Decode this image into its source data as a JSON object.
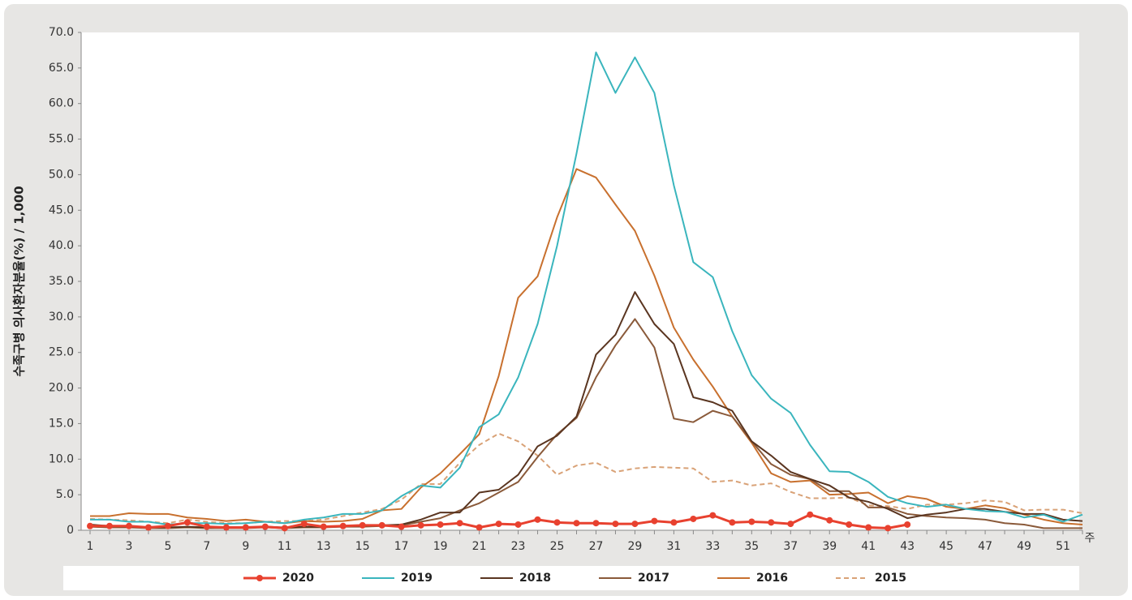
{
  "chart_data": {
    "type": "line",
    "y_label": "수족구병 의사환자분율(%) / 1,000",
    "x_label": "주",
    "categories": [
      1,
      null,
      3,
      null,
      5,
      null,
      7,
      null,
      9,
      null,
      11,
      null,
      13,
      null,
      15,
      null,
      17,
      null,
      19,
      null,
      21,
      null,
      23,
      null,
      25,
      null,
      27,
      null,
      29,
      null,
      31,
      null,
      33,
      null,
      35,
      null,
      37,
      null,
      39,
      null,
      41,
      null,
      43,
      null,
      45,
      null,
      47,
      null,
      49,
      null,
      51,
      null
    ],
    "ylim": [
      0,
      70
    ],
    "yticks": [
      0,
      {
        "value": 5,
        "label": "5.0"
      },
      {
        "value": 10,
        "label": "10.0"
      },
      {
        "value": 15,
        "label": "15.0"
      },
      {
        "value": 20,
        "label": "20.0"
      },
      {
        "value": 25,
        "label": "25.0"
      },
      {
        "value": 30,
        "label": "30.0"
      },
      {
        "value": 35,
        "label": "35.0"
      },
      {
        "value": 40,
        "label": "40.0"
      },
      {
        "value": 45,
        "label": "45.0"
      },
      {
        "value": 50,
        "label": "50.0"
      },
      {
        "value": 55,
        "label": "55.0"
      },
      {
        "value": 60,
        "label": "60.0"
      },
      {
        "value": 65,
        "label": "65.0"
      },
      {
        "value": 70,
        "label": "70.0"
      }
    ],
    "grid": false,
    "legend": "bottom",
    "series": [
      {
        "name": "2020",
        "color": "#e8412f",
        "style": "markers",
        "values": [
          0.6,
          0.6,
          0.6,
          0.4,
          0.6,
          1.1,
          0.5,
          0.4,
          0.4,
          0.5,
          0.3,
          0.9,
          0.5,
          0.6,
          0.7,
          0.7,
          0.5,
          0.7,
          0.8,
          1.0,
          0.4,
          0.9,
          0.8,
          1.5,
          1.1,
          1.0,
          1.0,
          0.9,
          0.9,
          1.3,
          1.1,
          1.6,
          2.1,
          1.1,
          1.2,
          1.1,
          0.9,
          2.2,
          1.4,
          0.8,
          0.4,
          0.3,
          0.8,
          null,
          null,
          null,
          null,
          null,
          null,
          null,
          null,
          null
        ]
      },
      {
        "name": "2019",
        "color": "#3ab5bd",
        "style": "solid",
        "values": [
          1.5,
          1.5,
          1.2,
          1.2,
          0.8,
          1.0,
          1.0,
          0.9,
          1.0,
          1.2,
          1.0,
          1.5,
          1.8,
          2.3,
          2.3,
          2.8,
          4.8,
          6.3,
          6.0,
          8.8,
          14.5,
          16.3,
          21.5,
          29,
          40,
          53,
          67.2,
          61.5,
          66.5,
          61.5,
          48.5,
          37.7,
          35.6,
          28,
          21.8,
          18.5,
          16.5,
          12,
          8.3,
          8.2,
          6.8,
          4.7,
          3.8,
          3.3,
          3.6,
          3.0,
          2.7,
          2.6,
          1.8,
          2.2,
          1.2,
          2.2
        ]
      },
      {
        "name": "2018",
        "color": "#5a3520",
        "style": "solid",
        "values": [
          0.8,
          0.6,
          0.5,
          0.4,
          0.4,
          0.5,
          0.4,
          0.4,
          0.4,
          0.5,
          0.4,
          0.5,
          0.5,
          0.6,
          0.6,
          0.7,
          0.8,
          1.5,
          2.5,
          2.5,
          5.3,
          5.7,
          7.8,
          11.8,
          13.3,
          16.0,
          24.7,
          27.5,
          33.5,
          29,
          26.2,
          18.7,
          18,
          16.8,
          12.5,
          10.5,
          8.2,
          7.2,
          6.3,
          4.6,
          4.0,
          3.0,
          1.7,
          2.2,
          2.5,
          3.0,
          3.0,
          2.6,
          2.3,
          2.3,
          1.5,
          1.3
        ]
      },
      {
        "name": "2017",
        "color": "#8a5a3a",
        "style": "solid",
        "values": [
          0.5,
          0.4,
          0.4,
          0.3,
          0.3,
          0.4,
          0.3,
          0.3,
          0.3,
          0.4,
          0.3,
          0.4,
          0.4,
          0.5,
          0.5,
          0.6,
          0.7,
          1.2,
          1.7,
          2.8,
          3.8,
          5.3,
          6.8,
          10.3,
          13.5,
          15.8,
          21.5,
          26,
          29.7,
          25.7,
          15.7,
          15.2,
          16.8,
          16,
          12.5,
          9.3,
          7.8,
          7.2,
          5.5,
          5.5,
          3.2,
          3.2,
          2.3,
          2.0,
          1.8,
          1.7,
          1.5,
          1.0,
          0.8,
          0.3,
          0.3,
          0.3
        ]
      },
      {
        "name": "2016",
        "color": "#c8702e",
        "style": "solid",
        "values": [
          2.0,
          2.0,
          2.4,
          2.3,
          2.3,
          1.8,
          1.6,
          1.3,
          1.5,
          1.2,
          1.0,
          1.3,
          1.2,
          1.3,
          1.6,
          2.8,
          3.0,
          6.0,
          8.0,
          10.7,
          13.5,
          21.7,
          32.7,
          35.7,
          44,
          50.8,
          49.6,
          45.8,
          42.1,
          35.8,
          28.5,
          24,
          20.2,
          16,
          12.3,
          8,
          6.8,
          7.0,
          5.0,
          5.1,
          5.3,
          3.8,
          4.8,
          4.4,
          3.3,
          3.0,
          3.5,
          3.1,
          2.2,
          1.5,
          1.0,
          0.8
        ]
      },
      {
        "name": "2015",
        "color": "#d9a277",
        "style": "dashed",
        "values": [
          1.6,
          1.5,
          1.4,
          1.2,
          1.0,
          1.5,
          1.2,
          1.0,
          1.0,
          1.2,
          1.3,
          1.3,
          1.5,
          2.0,
          2.5,
          3.0,
          4.3,
          6.5,
          6.5,
          9.5,
          12.0,
          13.6,
          12.5,
          10.5,
          7.8,
          9.1,
          9.5,
          8.2,
          8.7,
          8.9,
          8.8,
          8.7,
          6.8,
          7.0,
          6.3,
          6.6,
          5.4,
          4.5,
          4.5,
          4.6,
          3.5,
          3.4,
          3.0,
          3.6,
          3.6,
          3.8,
          4.2,
          4.0,
          2.8,
          2.9,
          2.9,
          2.4
        ]
      }
    ]
  }
}
